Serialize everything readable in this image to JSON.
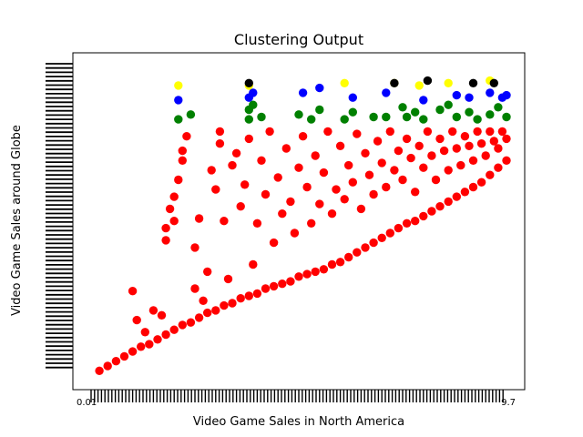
{
  "chart_data": {
    "type": "scatter",
    "title": "Clustering Output",
    "xlabel": "Video Game Sales in North America",
    "ylabel": "Video Game Sales around Globe",
    "grid": false,
    "legend": "none",
    "xlim": [
      0,
      1
    ],
    "ylim": [
      0,
      1
    ],
    "x_tick_label_start": "0.01",
    "x_tick_label_end": "9.7",
    "cluster_colors": {
      "red": "#ff0000",
      "green": "#008000",
      "blue": "#0000ff",
      "yellow": "#ffff00",
      "black": "#000000"
    },
    "series": [
      {
        "color": "#ff0000",
        "points": [
          [
            0.02,
            0.01
          ],
          [
            0.04,
            0.03
          ],
          [
            0.06,
            0.05
          ],
          [
            0.08,
            0.07
          ],
          [
            0.1,
            0.09
          ],
          [
            0.12,
            0.11
          ],
          [
            0.14,
            0.12
          ],
          [
            0.16,
            0.14
          ],
          [
            0.18,
            0.16
          ],
          [
            0.2,
            0.18
          ],
          [
            0.22,
            0.2
          ],
          [
            0.24,
            0.21
          ],
          [
            0.26,
            0.23
          ],
          [
            0.28,
            0.25
          ],
          [
            0.3,
            0.26
          ],
          [
            0.32,
            0.28
          ],
          [
            0.34,
            0.29
          ],
          [
            0.36,
            0.31
          ],
          [
            0.38,
            0.32
          ],
          [
            0.4,
            0.33
          ],
          [
            0.42,
            0.35
          ],
          [
            0.44,
            0.36
          ],
          [
            0.46,
            0.37
          ],
          [
            0.48,
            0.38
          ],
          [
            0.5,
            0.4
          ],
          [
            0.52,
            0.41
          ],
          [
            0.54,
            0.42
          ],
          [
            0.56,
            0.43
          ],
          [
            0.58,
            0.45
          ],
          [
            0.6,
            0.46
          ],
          [
            0.62,
            0.48
          ],
          [
            0.64,
            0.5
          ],
          [
            0.66,
            0.52
          ],
          [
            0.68,
            0.54
          ],
          [
            0.7,
            0.56
          ],
          [
            0.72,
            0.58
          ],
          [
            0.74,
            0.6
          ],
          [
            0.76,
            0.62
          ],
          [
            0.78,
            0.63
          ],
          [
            0.8,
            0.65
          ],
          [
            0.82,
            0.67
          ],
          [
            0.84,
            0.69
          ],
          [
            0.86,
            0.71
          ],
          [
            0.88,
            0.73
          ],
          [
            0.9,
            0.75
          ],
          [
            0.92,
            0.77
          ],
          [
            0.94,
            0.79
          ],
          [
            0.96,
            0.82
          ],
          [
            0.98,
            0.85
          ],
          [
            1.0,
            0.88
          ],
          [
            0.1,
            0.34
          ],
          [
            0.11,
            0.22
          ],
          [
            0.13,
            0.17
          ],
          [
            0.15,
            0.26
          ],
          [
            0.17,
            0.24
          ],
          [
            0.18,
            0.55
          ],
          [
            0.18,
            0.6
          ],
          [
            0.19,
            0.68
          ],
          [
            0.2,
            0.63
          ],
          [
            0.2,
            0.73
          ],
          [
            0.21,
            0.8
          ],
          [
            0.22,
            0.88
          ],
          [
            0.22,
            0.92
          ],
          [
            0.23,
            0.98
          ],
          [
            0.25,
            0.35
          ],
          [
            0.25,
            0.52
          ],
          [
            0.26,
            0.64
          ],
          [
            0.27,
            0.3
          ],
          [
            0.28,
            0.42
          ],
          [
            0.29,
            0.84
          ],
          [
            0.3,
            0.76
          ],
          [
            0.31,
            0.95
          ],
          [
            0.31,
            1.0
          ],
          [
            0.32,
            0.63
          ],
          [
            0.33,
            0.39
          ],
          [
            0.34,
            0.86
          ],
          [
            0.35,
            0.91
          ],
          [
            0.36,
            0.69
          ],
          [
            0.37,
            0.78
          ],
          [
            0.38,
            0.97
          ],
          [
            0.39,
            0.45
          ],
          [
            0.4,
            0.62
          ],
          [
            0.41,
            0.88
          ],
          [
            0.42,
            0.74
          ],
          [
            0.43,
            1.0
          ],
          [
            0.44,
            0.54
          ],
          [
            0.45,
            0.81
          ],
          [
            0.46,
            0.66
          ],
          [
            0.47,
            0.93
          ],
          [
            0.48,
            0.71
          ],
          [
            0.49,
            0.58
          ],
          [
            0.5,
            0.85
          ],
          [
            0.51,
            0.98
          ],
          [
            0.52,
            0.77
          ],
          [
            0.53,
            0.62
          ],
          [
            0.54,
            0.9
          ],
          [
            0.55,
            0.7
          ],
          [
            0.56,
            0.83
          ],
          [
            0.57,
            1.0
          ],
          [
            0.58,
            0.66
          ],
          [
            0.59,
            0.76
          ],
          [
            0.6,
            0.94
          ],
          [
            0.61,
            0.72
          ],
          [
            0.62,
            0.86
          ],
          [
            0.63,
            0.79
          ],
          [
            0.64,
            0.99
          ],
          [
            0.65,
            0.68
          ],
          [
            0.66,
            0.91
          ],
          [
            0.67,
            0.82
          ],
          [
            0.68,
            0.74
          ],
          [
            0.69,
            0.96
          ],
          [
            0.7,
            0.87
          ],
          [
            0.71,
            0.77
          ],
          [
            0.72,
            1.0
          ],
          [
            0.73,
            0.84
          ],
          [
            0.74,
            0.92
          ],
          [
            0.75,
            0.8
          ],
          [
            0.76,
            0.97
          ],
          [
            0.77,
            0.89
          ],
          [
            0.78,
            0.75
          ],
          [
            0.79,
            0.94
          ],
          [
            0.8,
            0.85
          ],
          [
            0.81,
            1.0
          ],
          [
            0.82,
            0.9
          ],
          [
            0.83,
            0.8
          ],
          [
            0.84,
            0.97
          ],
          [
            0.85,
            0.92
          ],
          [
            0.86,
            0.84
          ],
          [
            0.87,
            1.0
          ],
          [
            0.88,
            0.93
          ],
          [
            0.89,
            0.86
          ],
          [
            0.9,
            0.98
          ],
          [
            0.91,
            0.94
          ],
          [
            0.92,
            0.88
          ],
          [
            0.93,
            1.0
          ],
          [
            0.94,
            0.95
          ],
          [
            0.95,
            0.9
          ],
          [
            0.96,
            1.0
          ],
          [
            0.97,
            0.96
          ],
          [
            0.98,
            0.93
          ],
          [
            0.99,
            1.0
          ],
          [
            1.0,
            0.97
          ]
        ]
      },
      {
        "color": "#008000",
        "points": [
          [
            0.21,
            1.05
          ],
          [
            0.24,
            1.07
          ],
          [
            0.38,
            1.05
          ],
          [
            0.38,
            1.09
          ],
          [
            0.39,
            1.11
          ],
          [
            0.41,
            1.06
          ],
          [
            0.5,
            1.07
          ],
          [
            0.53,
            1.05
          ],
          [
            0.55,
            1.09
          ],
          [
            0.61,
            1.05
          ],
          [
            0.63,
            1.08
          ],
          [
            0.71,
            1.06
          ],
          [
            0.75,
            1.1
          ],
          [
            0.76,
            1.06
          ],
          [
            0.78,
            1.08
          ],
          [
            0.8,
            1.05
          ],
          [
            0.84,
            1.09
          ],
          [
            0.88,
            1.06
          ],
          [
            0.91,
            1.08
          ],
          [
            0.93,
            1.05
          ],
          [
            0.96,
            1.07
          ],
          [
            0.98,
            1.1
          ],
          [
            1.0,
            1.06
          ],
          [
            0.68,
            1.06
          ],
          [
            0.86,
            1.11
          ]
        ]
      },
      {
        "color": "#0000ff",
        "points": [
          [
            0.21,
            1.13
          ],
          [
            0.38,
            1.14
          ],
          [
            0.39,
            1.16
          ],
          [
            0.51,
            1.16
          ],
          [
            0.55,
            1.18
          ],
          [
            0.63,
            1.14
          ],
          [
            0.71,
            1.16
          ],
          [
            0.8,
            1.13
          ],
          [
            0.88,
            1.15
          ],
          [
            0.91,
            1.14
          ],
          [
            0.96,
            1.16
          ],
          [
            0.99,
            1.14
          ],
          [
            1.0,
            1.15
          ]
        ]
      },
      {
        "color": "#ffff00",
        "points": [
          [
            0.21,
            1.19
          ],
          [
            0.38,
            1.19
          ],
          [
            0.61,
            1.2
          ],
          [
            0.73,
            1.2
          ],
          [
            0.79,
            1.19
          ],
          [
            0.86,
            1.2
          ],
          [
            0.96,
            1.21
          ]
        ]
      },
      {
        "color": "#000000",
        "points": [
          [
            0.38,
            1.2
          ],
          [
            0.73,
            1.2
          ],
          [
            0.81,
            1.21
          ],
          [
            0.92,
            1.2
          ],
          [
            0.97,
            1.2
          ]
        ]
      }
    ]
  }
}
